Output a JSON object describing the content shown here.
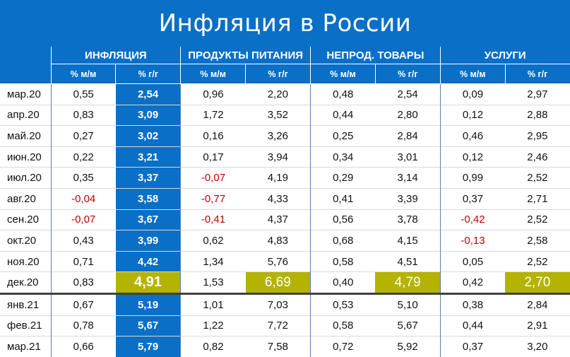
{
  "title": "Инфляция в России",
  "chart_data": {
    "type": "table",
    "title": "Инфляция в России",
    "groups": [
      "ИНФЛЯЦИЯ",
      "ПРОДУКТЫ ПИТАНИЯ",
      "НЕПРОД. ТОВАРЫ",
      "УСЛУГИ"
    ],
    "subheaders": [
      "% м/м",
      "% г/г"
    ],
    "rows": [
      {
        "label": "мар.20",
        "cells": [
          "0,55",
          "2,54",
          "0,96",
          "2,20",
          "0,48",
          "2,54",
          "0,09",
          "2,97"
        ]
      },
      {
        "label": "апр.20",
        "cells": [
          "0,83",
          "3,09",
          "1,72",
          "3,52",
          "0,44",
          "2,80",
          "0,12",
          "2,88"
        ]
      },
      {
        "label": "май.20",
        "cells": [
          "0,27",
          "3,02",
          "0,16",
          "3,26",
          "0,25",
          "2,84",
          "0,46",
          "2,95"
        ]
      },
      {
        "label": "июн.20",
        "cells": [
          "0,22",
          "3,21",
          "0,17",
          "3,94",
          "0,34",
          "3,01",
          "0,12",
          "2,46"
        ]
      },
      {
        "label": "июл.20",
        "cells": [
          "0,35",
          "3,37",
          "-0,07",
          "4,19",
          "0,29",
          "3,14",
          "0,99",
          "2,52"
        ]
      },
      {
        "label": "авг.20",
        "cells": [
          "-0,04",
          "3,58",
          "-0,77",
          "4,33",
          "0,41",
          "3,39",
          "0,37",
          "2,71"
        ]
      },
      {
        "label": "сен.20",
        "cells": [
          "-0,07",
          "3,67",
          "-0,41",
          "4,37",
          "0,56",
          "3,78",
          "-0,42",
          "2,52"
        ]
      },
      {
        "label": "окт.20",
        "cells": [
          "0,43",
          "3,99",
          "0,62",
          "4,83",
          "0,68",
          "4,15",
          "-0,13",
          "2,58"
        ]
      },
      {
        "label": "ноя.20",
        "cells": [
          "0,71",
          "4,42",
          "1,34",
          "5,76",
          "0,58",
          "4,51",
          "0,05",
          "2,52"
        ]
      },
      {
        "label": "дек.20",
        "cells": [
          "0,83",
          "4,91",
          "1,53",
          "6,69",
          "0,40",
          "4,79",
          "0,42",
          "2,70"
        ],
        "highlight": [
          1,
          3,
          5,
          7
        ]
      },
      {
        "label": "янв.21",
        "cells": [
          "0,67",
          "5,19",
          "1,01",
          "7,03",
          "0,53",
          "5,10",
          "0,38",
          "2,84"
        ],
        "separator_above": true
      },
      {
        "label": "фев.21",
        "cells": [
          "0,78",
          "5,67",
          "1,22",
          "7,72",
          "0,58",
          "5,67",
          "0,44",
          "2,91"
        ]
      },
      {
        "label": "мар.21",
        "cells": [
          "0,66",
          "5,79",
          "0,82",
          "7,58",
          "0,72",
          "5,92",
          "0,37",
          "3,20"
        ]
      }
    ],
    "colors": {
      "header_bg": "#0a6fc6",
      "negative": "#c00000",
      "highlight": "#b3b300"
    }
  }
}
